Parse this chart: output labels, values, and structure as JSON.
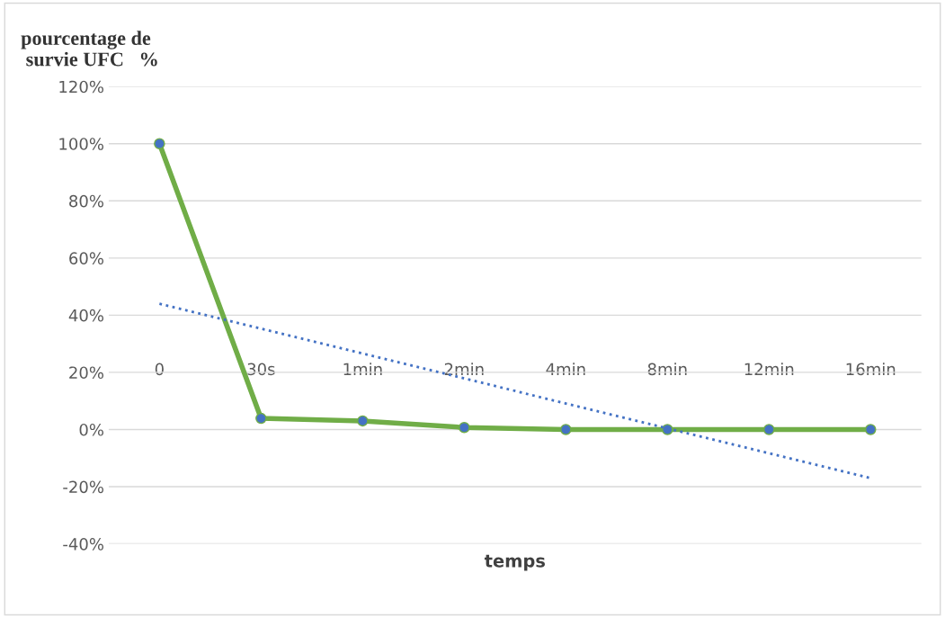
{
  "chart_data": {
    "type": "line",
    "ylabel": "pourcentage de\n survie UFC   %",
    "xlabel": "temps",
    "categories": [
      "0",
      "30s",
      "1min",
      "2min",
      "4min",
      "8min",
      "12min",
      "16min"
    ],
    "series": [
      {
        "color": "#70ad47",
        "values": [
          100,
          3.9,
          3,
          0.7,
          0,
          0,
          0,
          0
        ],
        "marker": "circle",
        "line_style": "solid"
      },
      {
        "color": "#4472c4",
        "values": [
          44,
          35.3,
          26.6,
          17.9,
          9.1,
          0.4,
          -8.3,
          -17
        ],
        "marker": "none",
        "line_style": "dotted"
      }
    ],
    "ylim": [
      -40,
      120
    ],
    "yticks": [
      {
        "value": -40,
        "label": "-40%"
      },
      {
        "value": -20,
        "label": "-20%"
      },
      {
        "value": 0,
        "label": "0%"
      },
      {
        "value": 20,
        "label": "20%"
      },
      {
        "value": 40,
        "label": "40%"
      },
      {
        "value": 60,
        "label": "60%"
      },
      {
        "value": 80,
        "label": "80%"
      },
      {
        "value": 100,
        "label": "100%"
      },
      {
        "value": 120,
        "label": "120%"
      }
    ],
    "grid": "y",
    "legend": false
  }
}
